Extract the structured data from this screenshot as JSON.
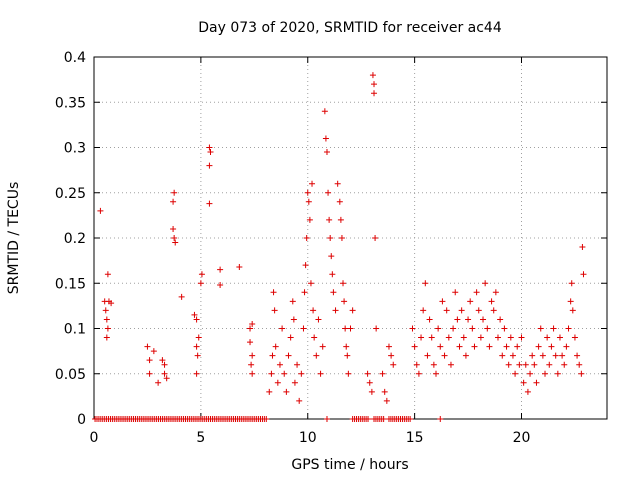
{
  "chart_data": {
    "type": "scatter",
    "title": "Day 073 of 2020, SRMTID for receiver ac44",
    "xlabel": "GPS time / hours",
    "ylabel": "SRMTID / TECUs",
    "xlim": [
      0,
      24
    ],
    "ylim": [
      0,
      0.4
    ],
    "grid": true,
    "marker": "+",
    "color": "#dd0000",
    "xticks": [
      0,
      5,
      10,
      15,
      20
    ],
    "xtick_labels": [
      "0",
      "5",
      "10",
      "15",
      "20"
    ],
    "yticks": [
      0,
      0.05,
      0.1,
      0.15,
      0.2,
      0.25,
      0.3,
      0.35,
      0.4
    ],
    "ytick_labels": [
      "0",
      "0.05",
      "0.1",
      "0.15",
      "0.2",
      "0.25",
      "0.3",
      "0.35",
      "0.4"
    ],
    "series": [
      {
        "name": "SRMTID",
        "points": [
          [
            0.3,
            0.23
          ],
          [
            0.5,
            0.13
          ],
          [
            0.55,
            0.12
          ],
          [
            0.6,
            0.11
          ],
          [
            0.6,
            0.09
          ],
          [
            0.65,
            0.1
          ],
          [
            0.65,
            0.16
          ],
          [
            0.7,
            0.13
          ],
          [
            0.8,
            0.128
          ],
          [
            2.5,
            0.08
          ],
          [
            2.6,
            0.065
          ],
          [
            2.6,
            0.05
          ],
          [
            2.8,
            0.075
          ],
          [
            3.0,
            0.04
          ],
          [
            3.2,
            0.065
          ],
          [
            3.3,
            0.06
          ],
          [
            3.3,
            0.05
          ],
          [
            3.4,
            0.045
          ],
          [
            3.7,
            0.24
          ],
          [
            3.75,
            0.25
          ],
          [
            3.7,
            0.21
          ],
          [
            3.75,
            0.2
          ],
          [
            3.8,
            0.195
          ],
          [
            4.1,
            0.135
          ],
          [
            4.7,
            0.115
          ],
          [
            4.8,
            0.11
          ],
          [
            4.8,
            0.08
          ],
          [
            4.85,
            0.07
          ],
          [
            4.9,
            0.09
          ],
          [
            4.8,
            0.05
          ],
          [
            5.0,
            0.15
          ],
          [
            5.05,
            0.16
          ],
          [
            5.4,
            0.3
          ],
          [
            5.45,
            0.295
          ],
          [
            5.4,
            0.28
          ],
          [
            5.4,
            0.238
          ],
          [
            5.9,
            0.165
          ],
          [
            5.9,
            0.148
          ],
          [
            6.8,
            0.168
          ],
          [
            7.3,
            0.1
          ],
          [
            7.3,
            0.085
          ],
          [
            7.35,
            0.06
          ],
          [
            7.4,
            0.07
          ],
          [
            7.4,
            0.05
          ],
          [
            7.4,
            0.105
          ],
          [
            8.2,
            0.03
          ],
          [
            8.3,
            0.05
          ],
          [
            8.35,
            0.07
          ],
          [
            8.4,
            0.14
          ],
          [
            8.45,
            0.12
          ],
          [
            8.5,
            0.08
          ],
          [
            8.6,
            0.04
          ],
          [
            8.7,
            0.06
          ],
          [
            8.8,
            0.1
          ],
          [
            8.9,
            0.05
          ],
          [
            9.0,
            0.03
          ],
          [
            9.1,
            0.07
          ],
          [
            9.2,
            0.09
          ],
          [
            9.3,
            0.13
          ],
          [
            9.35,
            0.11
          ],
          [
            9.4,
            0.04
          ],
          [
            9.5,
            0.06
          ],
          [
            9.6,
            0.02
          ],
          [
            9.7,
            0.05
          ],
          [
            9.8,
            0.1
          ],
          [
            9.85,
            0.14
          ],
          [
            9.9,
            0.17
          ],
          [
            9.95,
            0.2
          ],
          [
            10.0,
            0.25
          ],
          [
            10.05,
            0.24
          ],
          [
            10.1,
            0.22
          ],
          [
            10.15,
            0.15
          ],
          [
            10.2,
            0.26
          ],
          [
            10.25,
            0.12
          ],
          [
            10.3,
            0.09
          ],
          [
            10.4,
            0.07
          ],
          [
            10.5,
            0.11
          ],
          [
            10.6,
            0.05
          ],
          [
            10.7,
            0.08
          ],
          [
            10.8,
            0.34
          ],
          [
            10.85,
            0.31
          ],
          [
            10.9,
            0.295
          ],
          [
            10.95,
            0.25
          ],
          [
            11.0,
            0.22
          ],
          [
            11.05,
            0.2
          ],
          [
            11.1,
            0.18
          ],
          [
            11.15,
            0.16
          ],
          [
            11.2,
            0.14
          ],
          [
            11.3,
            0.12
          ],
          [
            11.4,
            0.26
          ],
          [
            11.5,
            0.24
          ],
          [
            11.55,
            0.22
          ],
          [
            11.6,
            0.2
          ],
          [
            11.65,
            0.15
          ],
          [
            11.7,
            0.13
          ],
          [
            11.75,
            0.1
          ],
          [
            11.8,
            0.08
          ],
          [
            11.85,
            0.07
          ],
          [
            11.9,
            0.05
          ],
          [
            12.0,
            0.1
          ],
          [
            12.1,
            0.12
          ],
          [
            12.8,
            0.05
          ],
          [
            12.9,
            0.04
          ],
          [
            13.0,
            0.03
          ],
          [
            13.05,
            0.38
          ],
          [
            13.1,
            0.37
          ],
          [
            13.1,
            0.36
          ],
          [
            13.15,
            0.2
          ],
          [
            13.2,
            0.1
          ],
          [
            13.5,
            0.05
          ],
          [
            13.6,
            0.03
          ],
          [
            13.7,
            0.02
          ],
          [
            13.8,
            0.08
          ],
          [
            13.9,
            0.07
          ],
          [
            14.0,
            0.06
          ],
          [
            14.9,
            0.1
          ],
          [
            15.0,
            0.08
          ],
          [
            15.1,
            0.06
          ],
          [
            15.2,
            0.05
          ],
          [
            15.3,
            0.09
          ],
          [
            15.4,
            0.12
          ],
          [
            15.5,
            0.15
          ],
          [
            15.6,
            0.07
          ],
          [
            15.7,
            0.11
          ],
          [
            15.8,
            0.09
          ],
          [
            15.9,
            0.06
          ],
          [
            16.0,
            0.05
          ],
          [
            16.1,
            0.1
          ],
          [
            16.2,
            0.08
          ],
          [
            16.3,
            0.13
          ],
          [
            16.4,
            0.07
          ],
          [
            16.5,
            0.12
          ],
          [
            16.6,
            0.09
          ],
          [
            16.7,
            0.06
          ],
          [
            16.8,
            0.1
          ],
          [
            16.9,
            0.14
          ],
          [
            17.0,
            0.11
          ],
          [
            17.1,
            0.08
          ],
          [
            17.2,
            0.12
          ],
          [
            17.3,
            0.09
          ],
          [
            17.4,
            0.07
          ],
          [
            17.5,
            0.11
          ],
          [
            17.6,
            0.13
          ],
          [
            17.7,
            0.1
          ],
          [
            17.8,
            0.08
          ],
          [
            17.9,
            0.14
          ],
          [
            18.0,
            0.12
          ],
          [
            18.1,
            0.09
          ],
          [
            18.2,
            0.11
          ],
          [
            18.3,
            0.15
          ],
          [
            18.4,
            0.1
          ],
          [
            18.5,
            0.08
          ],
          [
            18.6,
            0.13
          ],
          [
            18.7,
            0.12
          ],
          [
            18.8,
            0.14
          ],
          [
            18.9,
            0.09
          ],
          [
            19.0,
            0.11
          ],
          [
            19.1,
            0.07
          ],
          [
            19.2,
            0.1
          ],
          [
            19.3,
            0.08
          ],
          [
            19.4,
            0.06
          ],
          [
            19.5,
            0.09
          ],
          [
            19.6,
            0.07
          ],
          [
            19.7,
            0.05
          ],
          [
            19.8,
            0.08
          ],
          [
            19.9,
            0.06
          ],
          [
            20.0,
            0.09
          ],
          [
            20.1,
            0.04
          ],
          [
            20.2,
            0.06
          ],
          [
            20.3,
            0.03
          ],
          [
            20.4,
            0.05
          ],
          [
            20.5,
            0.07
          ],
          [
            20.6,
            0.06
          ],
          [
            20.7,
            0.04
          ],
          [
            20.8,
            0.08
          ],
          [
            20.9,
            0.1
          ],
          [
            21.0,
            0.07
          ],
          [
            21.1,
            0.05
          ],
          [
            21.2,
            0.09
          ],
          [
            21.3,
            0.06
          ],
          [
            21.4,
            0.08
          ],
          [
            21.5,
            0.1
          ],
          [
            21.6,
            0.07
          ],
          [
            21.7,
            0.05
          ],
          [
            21.8,
            0.09
          ],
          [
            21.9,
            0.07
          ],
          [
            22.0,
            0.06
          ],
          [
            22.1,
            0.08
          ],
          [
            22.2,
            0.1
          ],
          [
            22.3,
            0.13
          ],
          [
            22.35,
            0.15
          ],
          [
            22.4,
            0.12
          ],
          [
            22.5,
            0.09
          ],
          [
            22.6,
            0.07
          ],
          [
            22.7,
            0.06
          ],
          [
            22.8,
            0.05
          ],
          [
            22.85,
            0.19
          ],
          [
            22.9,
            0.16
          ]
        ]
      }
    ],
    "zero_band": {
      "value": 0,
      "segments": [
        [
          0.05,
          8.1
        ],
        [
          10.9,
          10.9
        ],
        [
          12.1,
          12.9
        ],
        [
          13.1,
          13.6
        ],
        [
          13.8,
          14.8
        ],
        [
          16.2,
          16.2
        ]
      ]
    }
  }
}
